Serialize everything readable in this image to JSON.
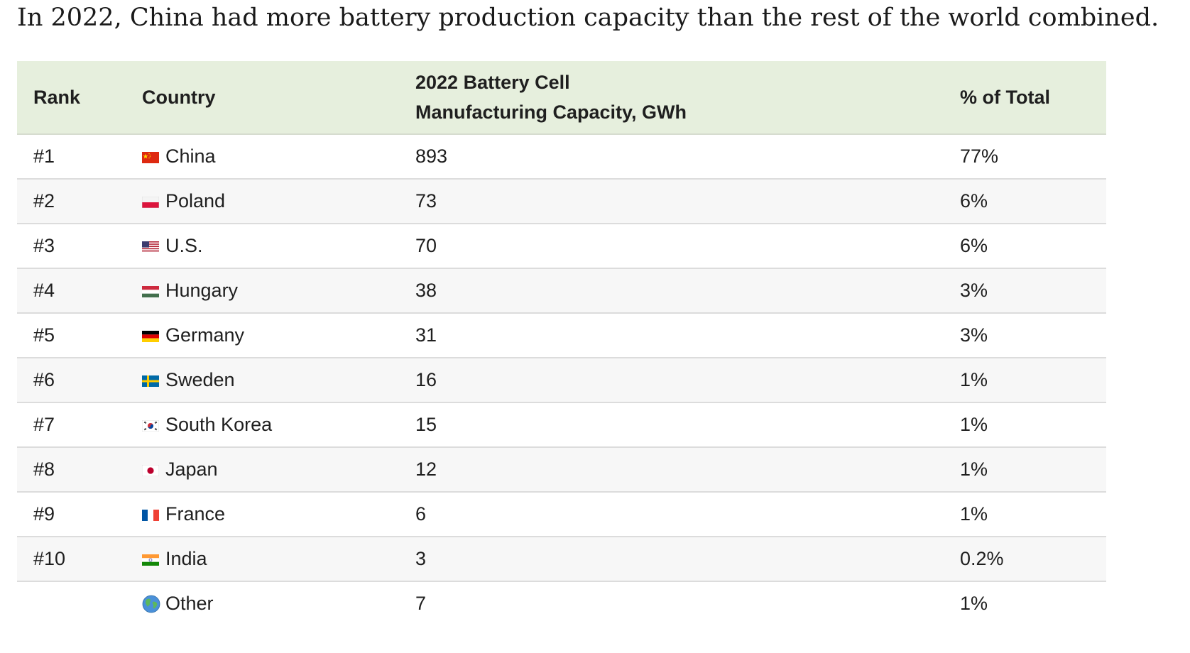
{
  "headline": "In 2022, China had more battery production capacity than the rest of the world combined.",
  "table": {
    "headers": {
      "rank": "Rank",
      "country": "Country",
      "capacity_line1": "2022 Battery Cell",
      "capacity_line2": "Manufacturing Capacity, GWh",
      "share": "% of Total"
    },
    "rows": [
      {
        "rank": "#1",
        "flag": "china-flag-icon",
        "country": "China",
        "capacity": "893",
        "share": "77%"
      },
      {
        "rank": "#2",
        "flag": "poland-flag-icon",
        "country": "Poland",
        "capacity": "73",
        "share": "6%"
      },
      {
        "rank": "#3",
        "flag": "us-flag-icon",
        "country": "U.S.",
        "capacity": "70",
        "share": "6%"
      },
      {
        "rank": "#4",
        "flag": "hungary-flag-icon",
        "country": "Hungary",
        "capacity": "38",
        "share": "3%"
      },
      {
        "rank": "#5",
        "flag": "germany-flag-icon",
        "country": "Germany",
        "capacity": "31",
        "share": "3%"
      },
      {
        "rank": "#6",
        "flag": "sweden-flag-icon",
        "country": "Sweden",
        "capacity": "16",
        "share": "1%"
      },
      {
        "rank": "#7",
        "flag": "south-korea-flag-icon",
        "country": "South Korea",
        "capacity": "15",
        "share": "1%"
      },
      {
        "rank": "#8",
        "flag": "japan-flag-icon",
        "country": "Japan",
        "capacity": "12",
        "share": "1%"
      },
      {
        "rank": "#9",
        "flag": "france-flag-icon",
        "country": "France",
        "capacity": "6",
        "share": "1%"
      },
      {
        "rank": "#10",
        "flag": "india-flag-icon",
        "country": "India",
        "capacity": "3",
        "share": "0.2%"
      },
      {
        "rank": "",
        "flag": "globe-icon",
        "country": "Other",
        "capacity": "7",
        "share": "1%"
      }
    ]
  }
}
